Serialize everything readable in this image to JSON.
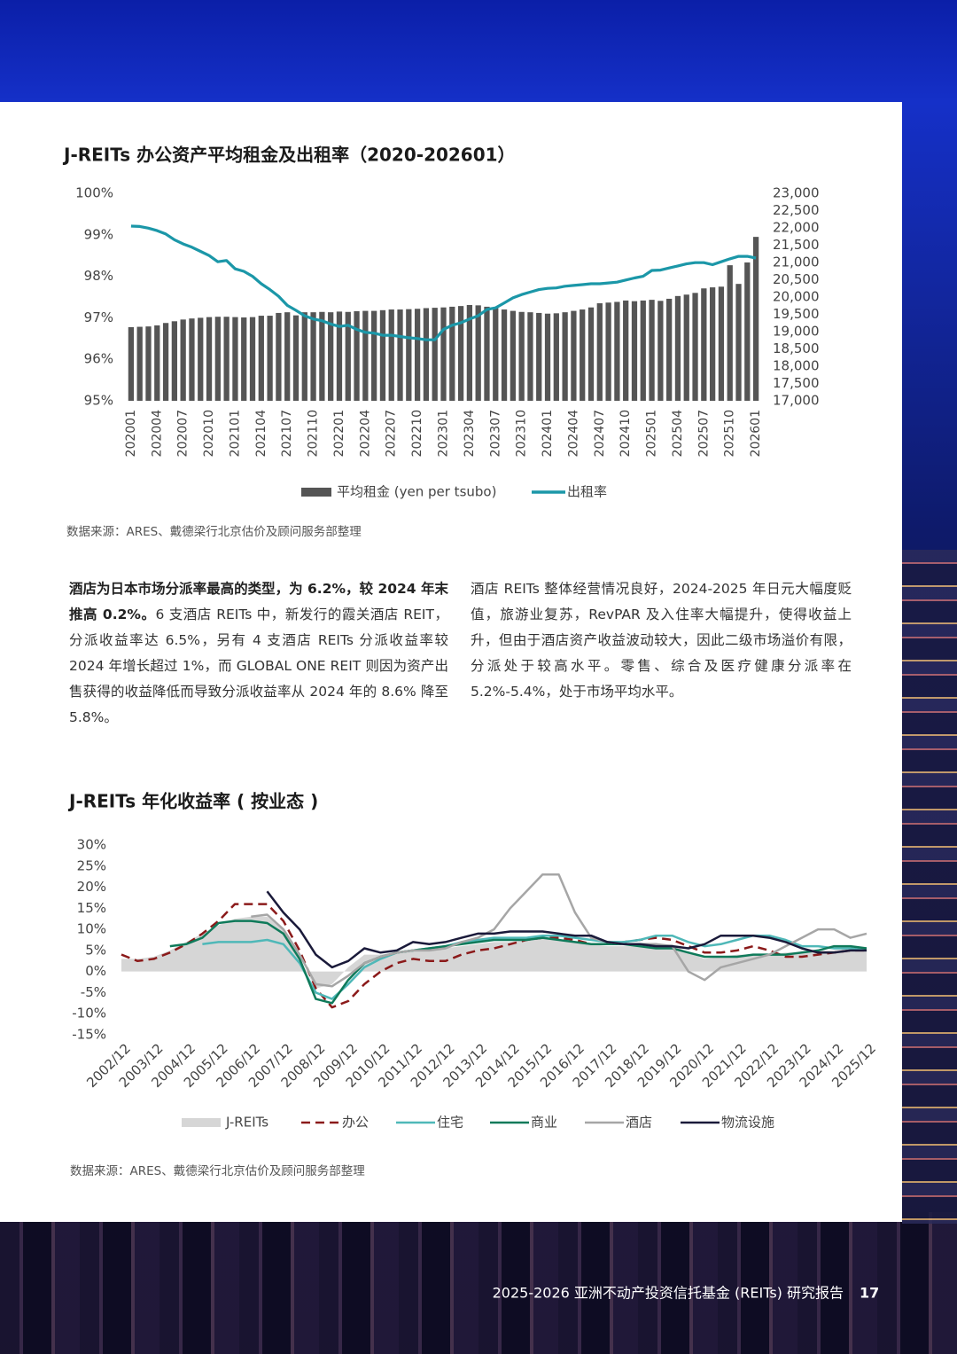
{
  "chart_data": [
    {
      "type": "combo",
      "title": "J-REITs 办公资产平均租金及出租率（2020-202601）",
      "source": "数据来源：ARES、戴德梁行北京估价及顾问服务部整理",
      "categories": [
        "202001",
        null,
        null,
        "202004",
        null,
        null,
        "202007",
        null,
        null,
        "202010",
        null,
        null,
        "202101",
        null,
        null,
        "202104",
        null,
        null,
        "202107",
        null,
        null,
        "202110",
        null,
        null,
        "202201",
        null,
        null,
        "202204",
        null,
        null,
        "202207",
        null,
        null,
        "202210",
        null,
        null,
        "202301",
        null,
        null,
        "202304",
        null,
        null,
        "202307",
        null,
        null,
        "202310",
        null,
        null,
        "202401",
        null,
        null,
        "202404",
        null,
        null,
        "202407",
        null,
        null,
        "202410",
        null,
        null,
        "202501",
        null,
        null,
        "202504",
        null,
        null,
        "202507",
        null,
        null,
        "202510",
        null,
        null,
        "202601"
      ],
      "series": [
        {
          "name": "平均租金 (yen per tsubo)",
          "type": "bar",
          "axis": "y2",
          "color": "#555555",
          "values": [
            19130,
            19140,
            19150,
            19180,
            19250,
            19300,
            19350,
            19380,
            19400,
            19420,
            19430,
            19430,
            19420,
            19410,
            19420,
            19460,
            19460,
            19540,
            19560,
            19470,
            19560,
            19560,
            19570,
            19560,
            19580,
            19570,
            19590,
            19600,
            19600,
            19620,
            19640,
            19640,
            19650,
            19660,
            19680,
            19690,
            19700,
            19720,
            19740,
            19770,
            19760,
            19720,
            19680,
            19640,
            19600,
            19570,
            19560,
            19540,
            19520,
            19530,
            19560,
            19600,
            19640,
            19700,
            19820,
            19840,
            19860,
            19900,
            19880,
            19900,
            19920,
            19890,
            19950,
            20030,
            20070,
            20120,
            20250,
            20280,
            20300,
            20920,
            20380,
            21000,
            21740
          ]
        },
        {
          "name": "出租率",
          "type": "line",
          "color": "#1b97a8",
          "values": [
            99.21,
            99.2,
            99.16,
            99.1,
            99.02,
            98.88,
            98.78,
            98.7,
            98.6,
            98.5,
            98.35,
            98.38,
            98.18,
            98.12,
            98.0,
            97.82,
            97.68,
            97.52,
            97.3,
            97.18,
            97.05,
            96.97,
            96.93,
            96.85,
            96.79,
            96.82,
            96.72,
            96.65,
            96.63,
            96.58,
            96.58,
            96.55,
            96.52,
            96.5,
            96.47,
            96.47,
            96.72,
            96.82,
            96.88,
            96.97,
            97.05,
            97.2,
            97.24,
            97.36,
            97.48,
            97.56,
            97.62,
            97.68,
            97.71,
            97.72,
            97.76,
            97.78,
            97.8,
            97.82,
            97.82,
            97.84,
            97.86,
            97.91,
            97.96,
            98.0,
            98.14,
            98.15,
            98.2,
            98.25,
            98.3,
            98.33,
            98.33,
            98.28,
            98.35,
            98.42,
            98.48,
            98.48,
            98.44
          ]
        }
      ],
      "ylim": [
        95,
        100
      ],
      "yticks": [
        {
          "value": 95,
          "label": "95%"
        },
        {
          "value": 96,
          "label": "96%"
        },
        {
          "value": 97,
          "label": "97%"
        },
        {
          "value": 98,
          "label": "98%"
        },
        {
          "value": 99,
          "label": "99%"
        },
        {
          "value": 100,
          "label": "100%"
        }
      ],
      "y2lim": [
        17000,
        23000
      ],
      "y2ticks": [
        {
          "value": 17000,
          "label": "17,000"
        },
        {
          "value": 17500,
          "label": "17,500"
        },
        {
          "value": 18000,
          "label": "18,000"
        },
        {
          "value": 18500,
          "label": "18,500"
        },
        {
          "value": 19000,
          "label": "19,000"
        },
        {
          "value": 19500,
          "label": "19,500"
        },
        {
          "value": 20000,
          "label": "20,000"
        },
        {
          "value": 20500,
          "label": "20,500"
        },
        {
          "value": 21000,
          "label": "21,000"
        },
        {
          "value": 21500,
          "label": "21,500"
        },
        {
          "value": 22000,
          "label": "22,000"
        },
        {
          "value": 22500,
          "label": "22,500"
        },
        {
          "value": 23000,
          "label": "23,000"
        }
      ],
      "grid": false,
      "legend": "bottom"
    },
    {
      "type": "line",
      "title": "J-REITs 年化收益率 ( 按业态 )",
      "source": "数据来源：ARES、戴德梁行北京估价及顾问服务部整理",
      "categories": [
        "2002/12",
        null,
        "2003/12",
        null,
        "2004/12",
        null,
        "2005/12",
        null,
        "2006/12",
        null,
        "2007/12",
        null,
        "2008/12",
        null,
        "2009/12",
        null,
        "2010/12",
        null,
        "2011/12",
        null,
        "2012/12",
        null,
        "2013/12",
        null,
        "2014/12",
        null,
        "2015/12",
        null,
        "2016/12",
        null,
        "2017/12",
        null,
        "2018/12",
        null,
        "2019/12",
        null,
        "2020/12",
        null,
        "2021/12",
        null,
        "2022/12",
        null,
        "2023/12",
        null,
        "2024/12",
        null,
        "2025/12"
      ],
      "series": [
        {
          "name": "J-REITs",
          "style": "area",
          "color": "#d6d6d6",
          "values": [
            3,
            3,
            3.5,
            5,
            7,
            9,
            11,
            12.5,
            13,
            13,
            10,
            3,
            -4,
            -3,
            1,
            4,
            4,
            4.5,
            5,
            5,
            5.5,
            6,
            6.5,
            7,
            7,
            7.5,
            8,
            7.5,
            7,
            6.5,
            6,
            6,
            6,
            6.5,
            6.5,
            4.5,
            3,
            3.5,
            4,
            4,
            4,
            4.5,
            4.5,
            5,
            5,
            5.5,
            5.5
          ]
        },
        {
          "name": "办公",
          "style": "dashed",
          "color": "#8b1a1a",
          "values": [
            4,
            2.5,
            3,
            4.5,
            6.5,
            9,
            12,
            16,
            16,
            16,
            12,
            5,
            -4,
            -8.5,
            -7,
            -3,
            0,
            2,
            3,
            2.5,
            2.5,
            4,
            5,
            5.5,
            6.5,
            7.5,
            8,
            8,
            7.5,
            6.5,
            6.5,
            7,
            7.5,
            8,
            7.5,
            6,
            4.5,
            4.5,
            5,
            6,
            5,
            3.5,
            3.5,
            4,
            4.5,
            5,
            5
          ]
        },
        {
          "name": "住宅",
          "style": "solid",
          "color": "#4fb8b8",
          "values": [
            null,
            null,
            null,
            null,
            null,
            6.5,
            7,
            7,
            7,
            7.5,
            6.5,
            2,
            -5,
            -6.5,
            -3,
            1,
            3,
            4.5,
            5,
            5.5,
            6,
            7,
            7.5,
            8,
            8,
            8,
            8.5,
            8.5,
            8,
            7.5,
            7,
            7,
            7.5,
            8.5,
            8.5,
            7,
            6,
            6.5,
            7.5,
            8.5,
            8.5,
            7.5,
            6,
            6,
            5.5,
            5.5,
            5
          ]
        },
        {
          "name": "商业",
          "style": "solid",
          "color": "#0f7a5a",
          "values": [
            null,
            null,
            null,
            6,
            6.5,
            8,
            11.5,
            12,
            12,
            11.5,
            9,
            3,
            -6.5,
            -7.5,
            -2,
            2,
            3.5,
            4.5,
            5,
            5.5,
            6,
            6.5,
            7,
            7.5,
            7.5,
            7.5,
            8,
            7.5,
            7,
            6.5,
            6.5,
            6.5,
            6,
            5.5,
            5.5,
            4.5,
            3.5,
            3.5,
            3.5,
            4,
            4,
            4,
            4.5,
            5,
            6,
            6,
            5.5
          ]
        },
        {
          "name": "酒店",
          "style": "solid",
          "color": "#a6a6a6",
          "values": [
            null,
            null,
            null,
            null,
            null,
            null,
            null,
            null,
            13,
            13.5,
            10,
            4,
            -3,
            -3.5,
            -1,
            2,
            3.5,
            4.5,
            5,
            5,
            5.5,
            7,
            8,
            10,
            15,
            19,
            23,
            23,
            14,
            8,
            7,
            6.5,
            6.5,
            6.5,
            6,
            0,
            -2,
            1,
            2,
            3,
            4,
            6,
            8,
            10,
            10,
            8,
            9
          ]
        },
        {
          "name": "物流设施",
          "style": "solid",
          "color": "#1a1a3a",
          "values": [
            null,
            null,
            null,
            null,
            null,
            null,
            null,
            null,
            null,
            19,
            14,
            10,
            4,
            1,
            2.5,
            5.5,
            4.5,
            5,
            7,
            6.5,
            7,
            8,
            9,
            9,
            9.5,
            9.5,
            9.5,
            9,
            8.5,
            8.5,
            7,
            6.5,
            6.5,
            6,
            6,
            5.5,
            6.5,
            8.5,
            8.5,
            8.5,
            8,
            7,
            5.5,
            4.5,
            4.5,
            5,
            5
          ]
        }
      ],
      "ylim": [
        -15,
        30
      ],
      "yticks": [
        {
          "value": -15,
          "label": "-15%"
        },
        {
          "value": -10,
          "label": "-10%"
        },
        {
          "value": -5,
          "label": "-5%"
        },
        {
          "value": 0,
          "label": "0%"
        },
        {
          "value": 5,
          "label": "5%"
        },
        {
          "value": 10,
          "label": "10%"
        },
        {
          "value": 15,
          "label": "15%"
        },
        {
          "value": 20,
          "label": "20%"
        },
        {
          "value": 25,
          "label": "25%"
        },
        {
          "value": 30,
          "label": "30%"
        }
      ],
      "grid": false,
      "legend": "bottom"
    }
  ],
  "text": {
    "left_bold": "酒店为日本市场分派率最高的类型，为 6.2%，较 2024 年末推高 0.2%。",
    "left": "6 支酒店 REITs 中，新发行的霞关酒店 REIT，分派收益率达 6.5%，另有 4 支酒店 REITs 分派收益率较 2024 年增长超过 1%，而 GLOBAL ONE REIT 则因为资产出售获得的收益降低而导致分派收益率从 2024 年的 8.6% 降至 5.8%。",
    "right": "酒店 REITs 整体经营情况良好，2024-2025 年日元大幅度贬值，旅游业复苏，RevPAR 及入住率大幅提升，使得收益上升，但由于酒店资产收益波动较大，因此二级市场溢价有限，分派处于较高水平。零售、综合及医疗健康分派率在 5.2%-5.4%，处于市场平均水平。"
  },
  "footer": {
    "title": "2025-2026 亚洲不动产投资信托基金 (REITs) 研究报告",
    "page": "17"
  }
}
